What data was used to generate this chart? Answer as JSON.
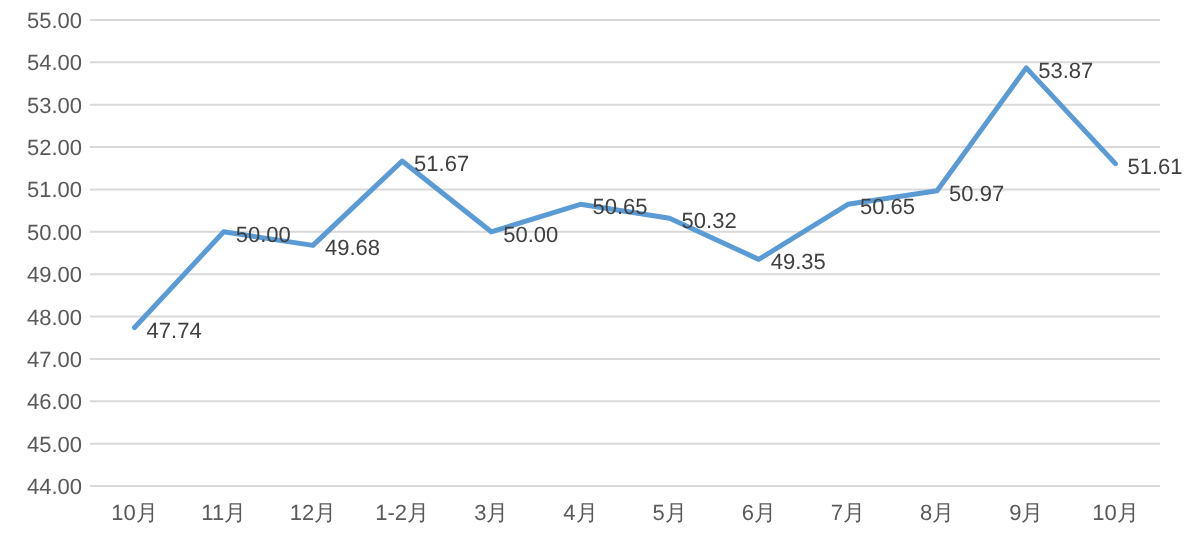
{
  "chart_data": {
    "type": "line",
    "categories": [
      "10月",
      "11月",
      "12月",
      "1-2月",
      "3月",
      "4月",
      "5月",
      "6月",
      "7月",
      "8月",
      "9月",
      "10月"
    ],
    "series": [
      {
        "color": "#5b9bd5",
        "values": [
          47.74,
          50.0,
          49.68,
          51.67,
          50.0,
          50.65,
          50.32,
          49.35,
          50.65,
          50.97,
          53.87,
          51.61
        ],
        "value_labels": [
          "47.74",
          "50.00",
          "49.68",
          "51.67",
          "50.00",
          "50.65",
          "50.32",
          "49.35",
          "50.65",
          "50.97",
          "53.87",
          "51.61"
        ]
      }
    ],
    "ylim": [
      44,
      55
    ],
    "yticks": [
      {
        "value": 44,
        "label": "44.00"
      },
      {
        "value": 45,
        "label": "45.00"
      },
      {
        "value": 46,
        "label": "46.00"
      },
      {
        "value": 47,
        "label": "47.00"
      },
      {
        "value": 48,
        "label": "48.00"
      },
      {
        "value": 49,
        "label": "49.00"
      },
      {
        "value": 50,
        "label": "50.00"
      },
      {
        "value": 51,
        "label": "51.00"
      },
      {
        "value": 52,
        "label": "52.00"
      },
      {
        "value": 53,
        "label": "53.00"
      },
      {
        "value": 54,
        "label": "54.00"
      },
      {
        "value": 55,
        "label": "55.00"
      }
    ],
    "grid": "y",
    "marker": "none",
    "line_style": "solid"
  }
}
